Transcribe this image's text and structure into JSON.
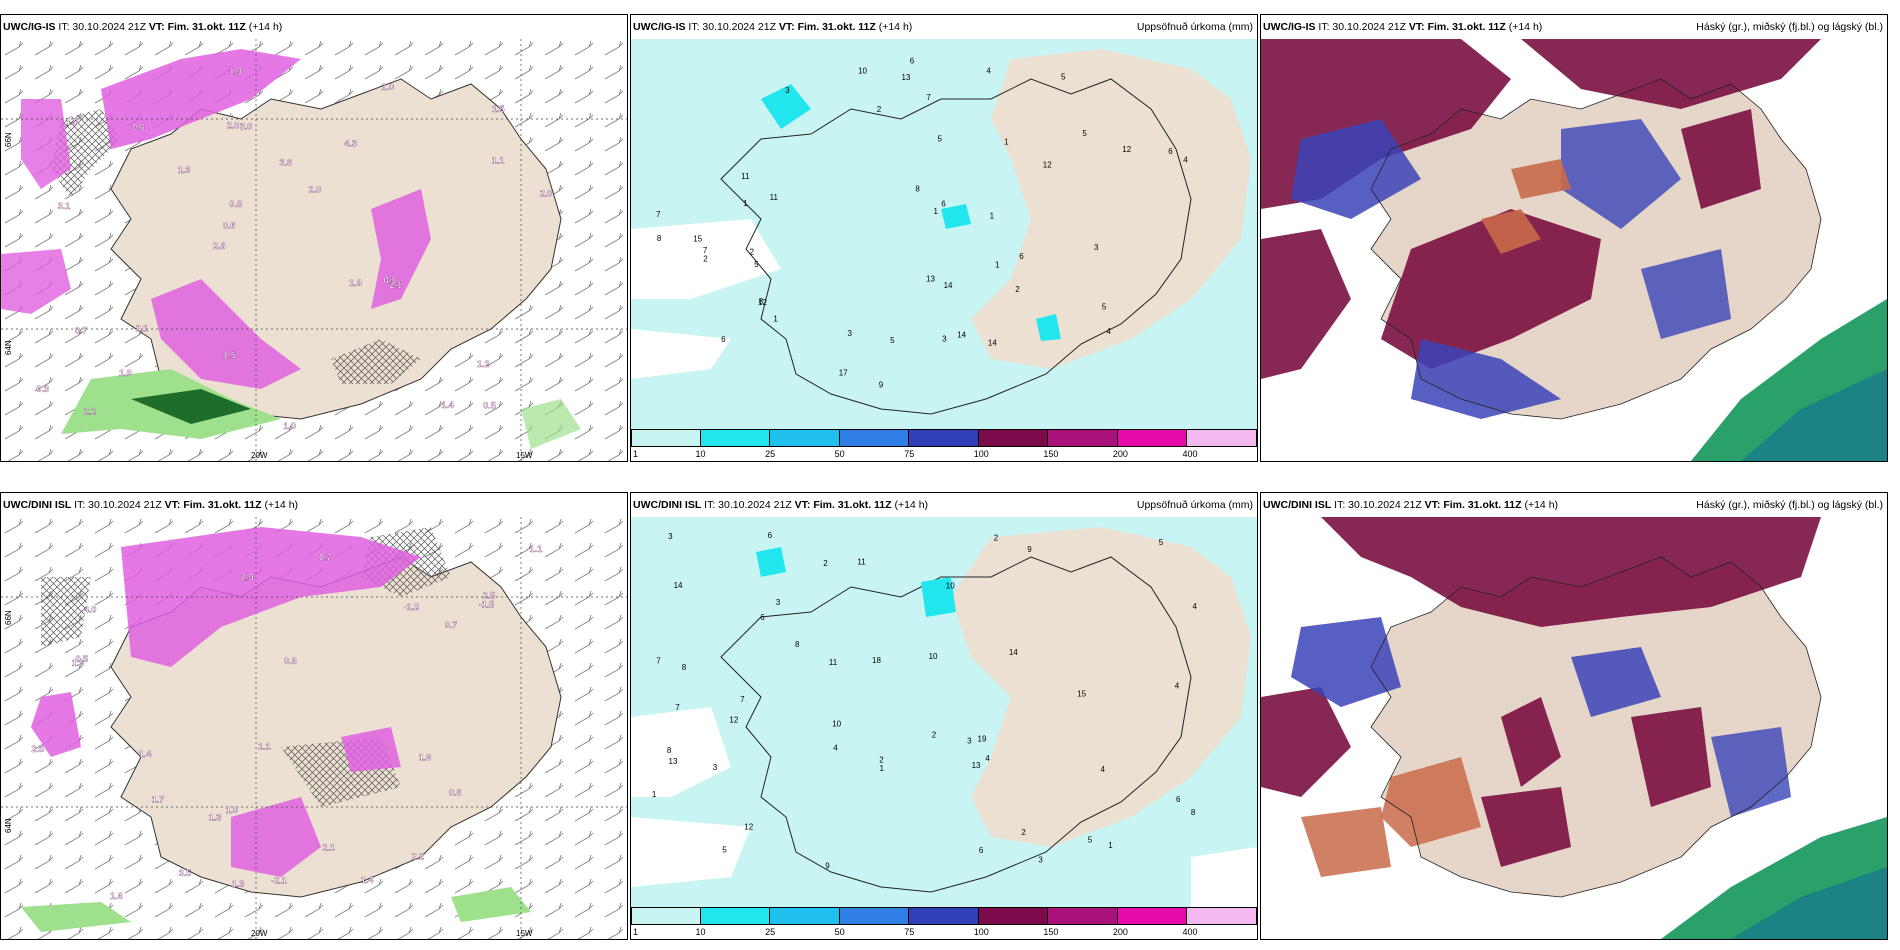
{
  "panels": {
    "top_left": {
      "model": "UWC/IG-IS",
      "init": "IT: 30.10.2024 21Z",
      "valid_label": "VT:",
      "valid": "Fim. 31.okt. 11Z",
      "step": "(+14 h)"
    },
    "top_mid": {
      "model": "UWC/IG-IS",
      "init": "IT: 30.10.2024 21Z",
      "valid_label": "VT:",
      "valid": "Fim. 31.okt. 11Z",
      "step": "(+14 h)",
      "title_right": "Uppsöfnuð úrkoma (mm)"
    },
    "top_right": {
      "model": "UWC/IG-IS",
      "init": "IT: 30.10.2024 21Z",
      "valid_label": "VT:",
      "valid": "Fim. 31.okt. 11Z",
      "step": "(+14 h)",
      "title_right": "Háský (gr.), miðský (fj.bl.) og lágský (bl.)"
    },
    "bottom_left": {
      "model": "UWC/DINI ISL",
      "init": "IT: 30.10.2024 21Z",
      "valid_label": "VT:",
      "valid": "Fim. 31.okt. 11Z",
      "step": "(+14 h)"
    },
    "bottom_mid": {
      "model": "UWC/DINI ISL",
      "init": "IT: 30.10.2024 21Z",
      "valid_label": "VT:",
      "valid": "Fim. 31.okt. 11Z",
      "step": "(+14 h)",
      "title_right": "Uppsöfnuð úrkoma (mm)"
    },
    "bottom_right": {
      "model": "UWC/DINI ISL",
      "init": "IT: 30.10.2024 21Z",
      "valid_label": "VT:",
      "valid": "Fim. 31.okt. 11Z",
      "step": "(+14 h)",
      "title_right": "Háský (gr.), miðský (fj.bl.) og lágský (bl.)"
    }
  },
  "axes": {
    "lon_20": "20W",
    "lon_15": "15W",
    "lat_66": "66N",
    "lat_64": "64N"
  },
  "colorbar": {
    "labels": [
      "1",
      "10",
      "25",
      "50",
      "75",
      "100",
      "150",
      "200",
      "400"
    ],
    "colors": [
      "#c8f4f4",
      "#22e6ee",
      "#1fc0ee",
      "#2f7fe6",
      "#2f3fb8",
      "#7a0a4a",
      "#a8127a",
      "#e60aa8",
      "#f3b8f0"
    ]
  },
  "top_left_labels": [
    "0.5",
    "3.1",
    "1.5",
    "2.8",
    "4.3",
    "2.2",
    "2.0",
    "3.6",
    "0.7",
    "1.3",
    "0.3",
    "1.0",
    "3.0",
    "2.0",
    "2.1",
    "1.8",
    "1.9",
    "2.0",
    "1.8",
    "1.1",
    "0.6",
    "1.5",
    "0.8",
    "0.6",
    "1.0",
    "2.1",
    "1.4",
    "1.2",
    "0.9",
    "1.0"
  ],
  "bottom_left_labels": [
    "1.3",
    "1.0",
    "0.7",
    "1.6",
    "2.9",
    "3.5",
    "-1.1",
    "2.5",
    "2.1",
    "1.9",
    "4.0",
    "-1.2",
    "-1.5",
    "1.1",
    "0.5",
    "1.4",
    "1.4",
    "2.5",
    "2.2",
    "1.9",
    "0.7",
    "0.8",
    "1.3",
    "0.8",
    "1.7",
    "-2.1"
  ],
  "top_mid_numbers": [
    "6",
    "5",
    "3",
    "5",
    "14",
    "11",
    "5",
    "8",
    "12",
    "12",
    "15",
    "6",
    "2",
    "1",
    "9",
    "10",
    "4",
    "7",
    "12",
    "17",
    "14",
    "13",
    "2",
    "6",
    "8",
    "3",
    "7",
    "4",
    "5",
    "6",
    "11",
    "1",
    "14",
    "13",
    "5",
    "2",
    "6",
    "1",
    "1",
    "3",
    "4",
    "7",
    "5",
    "2",
    "8",
    "1",
    "1",
    "3"
  ],
  "bottom_mid_numbers": [
    "4",
    "8",
    "5",
    "13",
    "10",
    "18",
    "15",
    "19",
    "11",
    "10",
    "12",
    "7",
    "3",
    "2",
    "4",
    "6",
    "14",
    "13",
    "9",
    "6",
    "8",
    "3",
    "1",
    "5",
    "3",
    "2",
    "2",
    "7",
    "12",
    "8",
    "4",
    "4",
    "11",
    "14",
    "2",
    "6",
    "3",
    "1",
    "1",
    "3",
    "7",
    "10",
    "4",
    "2",
    "9",
    "8",
    "5",
    "6"
  ],
  "map_colors": {
    "land": "#ece0d2",
    "precip_light": "#c8f4f4",
    "precip_mid": "#22e6ee",
    "pink_shade": "#e060e0",
    "green_shade": "#9ee08c",
    "cloud_high": "#2aa06a",
    "cloud_mid_a": "#d9b9b0",
    "cloud_mid_b": "#c86a4a",
    "cloud_low_a": "#3a43b8",
    "cloud_low_b": "#7a1040"
  }
}
